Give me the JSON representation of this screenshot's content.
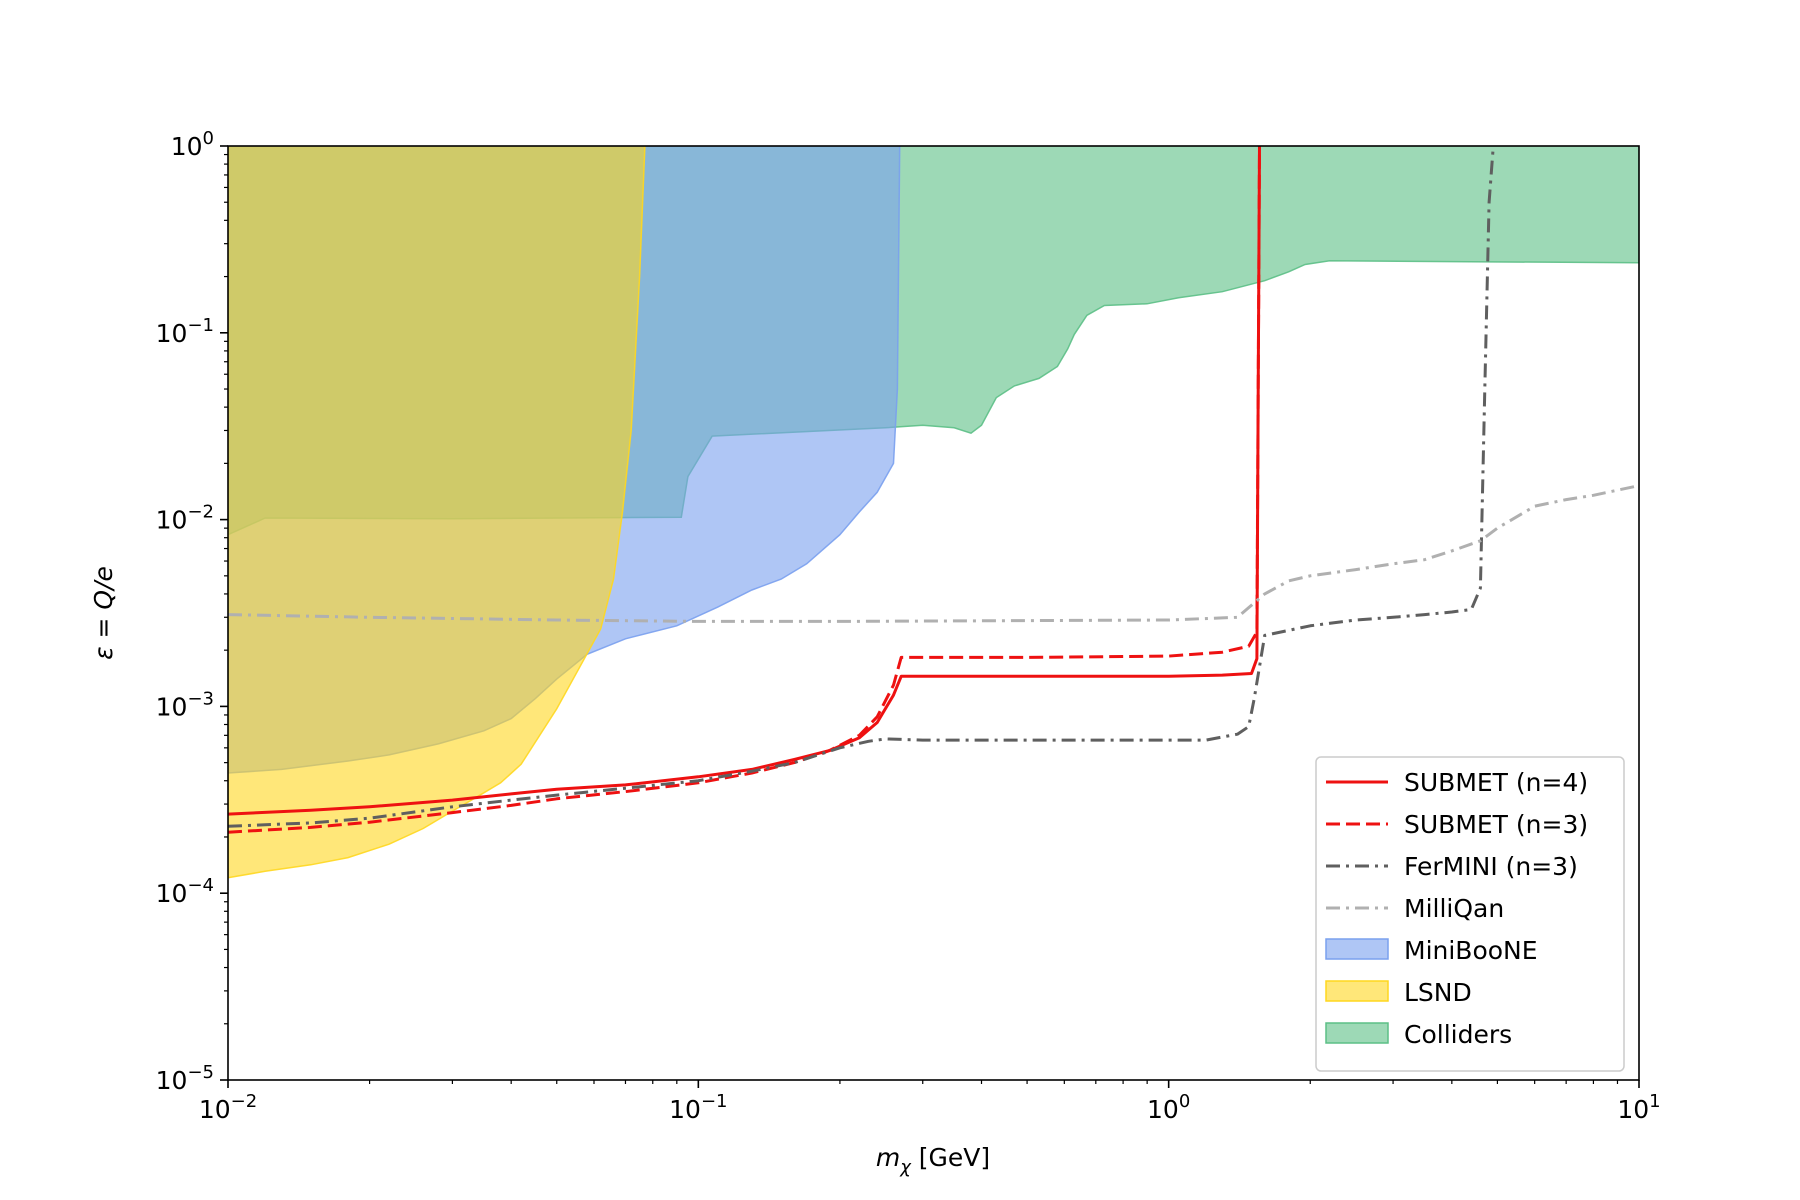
{
  "chart_data": {
    "type": "area",
    "xlabel_main": "m",
    "xlabel_sub": "χ",
    "xlabel_unit": " [GeV]",
    "ylabel": "ε = Q/e",
    "xscale": "log",
    "yscale": "log",
    "xlim": [
      0.01,
      10
    ],
    "ylim": [
      1e-05,
      1
    ],
    "x_ticks": [
      {
        "value": 0.01,
        "base": "10",
        "exp": "−2"
      },
      {
        "value": 0.1,
        "base": "10",
        "exp": "−1"
      },
      {
        "value": 1,
        "base": "10",
        "exp": "0"
      },
      {
        "value": 10,
        "base": "10",
        "exp": "1"
      }
    ],
    "y_ticks": [
      {
        "value": 1e-05,
        "base": "10",
        "exp": "−5"
      },
      {
        "value": 0.0001,
        "base": "10",
        "exp": "−4"
      },
      {
        "value": 0.001,
        "base": "10",
        "exp": "−3"
      },
      {
        "value": 0.01,
        "base": "10",
        "exp": "−2"
      },
      {
        "value": 0.1,
        "base": "10",
        "exp": "−1"
      },
      {
        "value": 1,
        "base": "10",
        "exp": "0"
      }
    ],
    "grid": false,
    "legend_position": "lower-right",
    "regions": [
      {
        "name": "Colliders",
        "color": "#5cbf86",
        "opacity": 0.6,
        "boundary": [
          [
            0.01,
            0.0083
          ],
          [
            0.012,
            0.0102
          ],
          [
            0.03,
            0.0101
          ],
          [
            0.092,
            0.0103
          ],
          [
            0.095,
            0.017
          ],
          [
            0.107,
            0.028
          ],
          [
            0.25,
            0.031
          ],
          [
            0.3,
            0.032
          ],
          [
            0.35,
            0.031
          ],
          [
            0.38,
            0.029
          ],
          [
            0.4,
            0.032
          ],
          [
            0.43,
            0.045
          ],
          [
            0.47,
            0.052
          ],
          [
            0.53,
            0.057
          ],
          [
            0.58,
            0.066
          ],
          [
            0.61,
            0.082
          ],
          [
            0.63,
            0.098
          ],
          [
            0.67,
            0.124
          ],
          [
            0.73,
            0.14
          ],
          [
            0.9,
            0.143
          ],
          [
            1.05,
            0.154
          ],
          [
            1.3,
            0.166
          ],
          [
            1.6,
            0.19
          ],
          [
            1.8,
            0.212
          ],
          [
            1.95,
            0.232
          ],
          [
            2.2,
            0.243
          ],
          [
            10,
            0.237
          ]
        ]
      },
      {
        "name": "MiniBooNE",
        "color": "#7aa0ee",
        "opacity": 0.6,
        "boundary": [
          [
            0.01,
            0.00044
          ],
          [
            0.013,
            0.00046
          ],
          [
            0.018,
            0.00051
          ],
          [
            0.022,
            0.00055
          ],
          [
            0.028,
            0.00063
          ],
          [
            0.035,
            0.00074
          ],
          [
            0.04,
            0.00086
          ],
          [
            0.045,
            0.0011
          ],
          [
            0.05,
            0.0014
          ],
          [
            0.058,
            0.0019
          ],
          [
            0.07,
            0.0023
          ],
          [
            0.09,
            0.0027
          ],
          [
            0.11,
            0.0034
          ],
          [
            0.13,
            0.0042
          ],
          [
            0.15,
            0.0048
          ],
          [
            0.17,
            0.0058
          ],
          [
            0.2,
            0.0083
          ],
          [
            0.22,
            0.011
          ],
          [
            0.24,
            0.014
          ],
          [
            0.26,
            0.02
          ],
          [
            0.265,
            0.05
          ],
          [
            0.268,
            1.0
          ]
        ]
      },
      {
        "name": "LSND",
        "color": "#ffd71f",
        "opacity": 0.6,
        "boundary": [
          [
            0.01,
            0.000121
          ],
          [
            0.012,
            0.000131
          ],
          [
            0.015,
            0.000142
          ],
          [
            0.018,
            0.000155
          ],
          [
            0.022,
            0.000183
          ],
          [
            0.026,
            0.000222
          ],
          [
            0.03,
            0.000275
          ],
          [
            0.034,
            0.00033
          ],
          [
            0.038,
            0.00039
          ],
          [
            0.042,
            0.00049
          ],
          [
            0.05,
            0.00097
          ],
          [
            0.056,
            0.00163
          ],
          [
            0.062,
            0.0026
          ],
          [
            0.066,
            0.0048
          ],
          [
            0.069,
            0.011
          ],
          [
            0.072,
            0.03
          ],
          [
            0.075,
            0.2
          ],
          [
            0.077,
            1.0
          ]
        ]
      }
    ],
    "series": [
      {
        "name": "SUBMET (n=4)",
        "color": "#ee1111",
        "dash": "solid",
        "x": [
          0.01,
          0.015,
          0.02,
          0.03,
          0.04,
          0.05,
          0.07,
          0.1,
          0.13,
          0.16,
          0.19,
          0.22,
          0.24,
          0.26,
          0.27,
          0.3,
          0.5,
          1.0,
          1.3,
          1.5,
          1.54,
          1.55,
          1.56
        ],
        "y": [
          0.000265,
          0.000278,
          0.00029,
          0.000315,
          0.00034,
          0.00036,
          0.00038,
          0.00042,
          0.00046,
          0.00052,
          0.00058,
          0.00068,
          0.00082,
          0.00115,
          0.00145,
          0.00145,
          0.00145,
          0.00145,
          0.00147,
          0.0015,
          0.0018,
          0.05,
          1.0
        ]
      },
      {
        "name": "SUBMET (n=3)",
        "color": "#ee1111",
        "dash": "dashed",
        "x": [
          0.01,
          0.015,
          0.02,
          0.03,
          0.04,
          0.05,
          0.07,
          0.1,
          0.13,
          0.16,
          0.19,
          0.22,
          0.24,
          0.26,
          0.27,
          0.3,
          0.5,
          1.0,
          1.3,
          1.48,
          1.54,
          1.55,
          1.56
        ],
        "y": [
          0.000212,
          0.000225,
          0.00024,
          0.00027,
          0.000295,
          0.00032,
          0.00035,
          0.00039,
          0.00044,
          0.0005,
          0.00058,
          0.0007,
          0.00088,
          0.0013,
          0.00183,
          0.00183,
          0.00183,
          0.00186,
          0.00195,
          0.0021,
          0.0025,
          0.05,
          1.0
        ]
      },
      {
        "name": "FerMINI (n=3)",
        "color": "#5f5f5f",
        "dash": "dashdot",
        "x": [
          0.01,
          0.015,
          0.02,
          0.03,
          0.04,
          0.05,
          0.07,
          0.1,
          0.13,
          0.16,
          0.2,
          0.23,
          0.25,
          0.3,
          0.5,
          1.0,
          1.2,
          1.4,
          1.48,
          1.52,
          1.6,
          2.0,
          2.5,
          3.0,
          3.5,
          4.0,
          4.4,
          4.6,
          4.7,
          4.8,
          4.9
        ],
        "y": [
          0.000228,
          0.000238,
          0.000252,
          0.00029,
          0.000315,
          0.000335,
          0.000365,
          0.0004,
          0.00045,
          0.0005,
          0.0006,
          0.00065,
          0.00067,
          0.00066,
          0.00066,
          0.00066,
          0.00066,
          0.00071,
          0.00078,
          0.0011,
          0.0024,
          0.0027,
          0.0029,
          0.003,
          0.0031,
          0.0032,
          0.0033,
          0.0043,
          0.05,
          0.5,
          1.0
        ]
      },
      {
        "name": "MilliQan",
        "color": "#b0b0b0",
        "dash": "dashdot",
        "x": [
          0.01,
          0.02,
          0.05,
          0.1,
          0.2,
          0.5,
          1.0,
          1.4,
          1.6,
          1.8,
          2.0,
          2.5,
          3.0,
          3.5,
          4.0,
          4.6,
          5.0,
          6.0,
          7.0,
          8.0,
          10.0
        ],
        "y": [
          0.0031,
          0.003,
          0.0029,
          0.00285,
          0.00285,
          0.00288,
          0.0029,
          0.003,
          0.004,
          0.0047,
          0.005,
          0.0054,
          0.0058,
          0.0061,
          0.0068,
          0.0077,
          0.009,
          0.0118,
          0.0128,
          0.0135,
          0.0152
        ]
      }
    ],
    "legend": [
      {
        "label": "SUBMET (n=4)",
        "kind": "line",
        "color": "#ee1111",
        "dash": "solid"
      },
      {
        "label": "SUBMET (n=3)",
        "kind": "line",
        "color": "#ee1111",
        "dash": "dashed"
      },
      {
        "label": "FerMINI (n=3)",
        "kind": "line",
        "color": "#5f5f5f",
        "dash": "dashdot"
      },
      {
        "label": "MilliQan",
        "kind": "line",
        "color": "#b0b0b0",
        "dash": "dashdot"
      },
      {
        "label": "MiniBooNE",
        "kind": "patch",
        "color": "#7aa0ee"
      },
      {
        "label": "LSND",
        "kind": "patch",
        "color": "#ffd71f"
      },
      {
        "label": "Colliders",
        "kind": "patch",
        "color": "#5cbf86"
      }
    ]
  }
}
